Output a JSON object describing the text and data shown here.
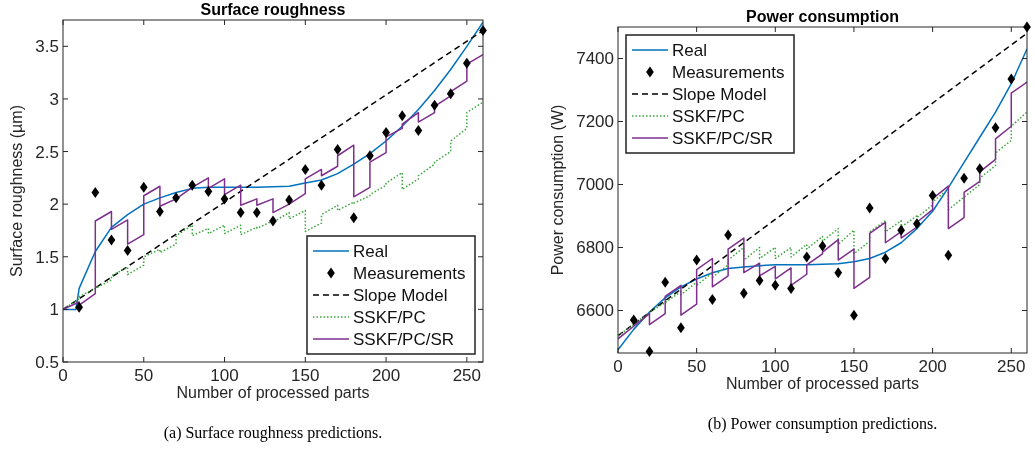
{
  "chart_data": [
    {
      "type": "line",
      "title": "Surface roughness",
      "xlabel": "Number of processed parts",
      "ylabel": "Surface roughness (µm)",
      "xlim": [
        0,
        260
      ],
      "ylim": [
        0.5,
        3.75
      ],
      "xticks": [
        0,
        50,
        100,
        150,
        200,
        250
      ],
      "yticks": [
        0.5,
        1,
        1.5,
        2,
        2.5,
        3,
        3.5
      ],
      "grid": false,
      "legend": "bottom right",
      "annotations": [
        "(a) Surface roughness predictions."
      ],
      "series": [
        {
          "name": "Real",
          "color": "#0072bd",
          "line_style": "solid",
          "x": [
            0,
            8,
            10,
            20,
            30,
            40,
            50,
            60,
            70,
            80,
            90,
            100,
            120,
            140,
            150,
            160,
            170,
            180,
            190,
            200,
            210,
            220,
            230,
            240,
            250,
            260
          ],
          "values": [
            1,
            1,
            1.2,
            1.55,
            1.78,
            1.9,
            2.0,
            2.06,
            2.11,
            2.15,
            2.16,
            2.16,
            2.16,
            2.17,
            2.2,
            2.23,
            2.29,
            2.38,
            2.48,
            2.6,
            2.74,
            2.9,
            3.08,
            3.28,
            3.5,
            3.73
          ]
        },
        {
          "name": "Measurements",
          "type": "scatter",
          "color": "#000000",
          "marker": "diamond",
          "x": [
            10,
            20,
            30,
            40,
            50,
            60,
            70,
            80,
            90,
            100,
            110,
            120,
            130,
            140,
            150,
            160,
            170,
            180,
            190,
            200,
            210,
            220,
            230,
            240,
            250,
            260
          ],
          "values": [
            1.02,
            2.11,
            1.66,
            1.56,
            2.16,
            1.93,
            2.06,
            2.18,
            2.12,
            2.05,
            1.92,
            1.92,
            1.84,
            2.04,
            2.33,
            2.18,
            2.52,
            1.87,
            2.46,
            2.68,
            2.84,
            2.7,
            2.94,
            3.05,
            3.34,
            3.65
          ]
        },
        {
          "name": "Slope Model",
          "type": "line",
          "color": "#000000",
          "line_style": "dashed",
          "x": [
            0,
            260
          ],
          "values": [
            1,
            3.65
          ]
        },
        {
          "name": "SSKF/PC",
          "type": "line",
          "color": "#3aa53a",
          "line_style": "dotted",
          "x": [
            0,
            10,
            10,
            20,
            20,
            30,
            30,
            40,
            40,
            50,
            50,
            60,
            60,
            70,
            70,
            80,
            80,
            90,
            90,
            100,
            100,
            110,
            110,
            120,
            120,
            130,
            130,
            140,
            140,
            150,
            150,
            160,
            160,
            170,
            170,
            180,
            180,
            190,
            190,
            200,
            200,
            210,
            210,
            220,
            220,
            230,
            230,
            240,
            240,
            250,
            250,
            260
          ],
          "values": [
            1,
            1.1,
            1.12,
            1.2,
            1.2,
            1.28,
            1.32,
            1.4,
            1.33,
            1.42,
            1.5,
            1.57,
            1.54,
            1.62,
            1.7,
            1.8,
            1.7,
            1.77,
            1.72,
            1.8,
            1.72,
            1.8,
            1.71,
            1.78,
            1.77,
            1.84,
            1.83,
            1.92,
            1.86,
            1.94,
            1.74,
            1.82,
            1.9,
            1.99,
            1.94,
            2.02,
            2.01,
            2.08,
            2.09,
            2.18,
            2.2,
            2.3,
            2.14,
            2.24,
            2.27,
            2.38,
            2.4,
            2.5,
            2.6,
            2.72,
            2.87,
            2.97
          ]
        },
        {
          "name": "SSKF/PC/SR",
          "type": "line",
          "color": "#7e2f8e",
          "line_style": "solid",
          "x": [
            0,
            10,
            10,
            20,
            20,
            30,
            30,
            40,
            40,
            50,
            50,
            60,
            60,
            70,
            70,
            80,
            80,
            90,
            90,
            100,
            100,
            110,
            110,
            120,
            120,
            130,
            130,
            140,
            140,
            150,
            150,
            160,
            160,
            170,
            170,
            180,
            180,
            190,
            190,
            200,
            200,
            210,
            210,
            220,
            220,
            230,
            230,
            240,
            240,
            250,
            250,
            260
          ],
          "values": [
            1,
            1.07,
            1.04,
            1.15,
            1.84,
            1.93,
            1.76,
            1.85,
            1.62,
            1.71,
            2.08,
            2.17,
            1.98,
            2.05,
            2.05,
            2.16,
            2.16,
            2.25,
            2.15,
            2.24,
            2.09,
            2.18,
            1.99,
            2.05,
            1.99,
            2.05,
            1.92,
            2.0,
            2.0,
            2.1,
            2.24,
            2.33,
            2.27,
            2.36,
            2.46,
            2.56,
            2.07,
            2.16,
            2.4,
            2.49,
            2.64,
            2.72,
            2.76,
            2.87,
            2.78,
            2.87,
            2.93,
            3.03,
            3.07,
            3.17,
            3.33,
            3.42
          ]
        }
      ]
    },
    {
      "type": "line",
      "title": "Power consumption",
      "xlabel": "Number of processed parts",
      "ylabel": "Power consumption (W)",
      "xlim": [
        0,
        260
      ],
      "ylim": [
        6465,
        7500
      ],
      "xticks": [
        0,
        50,
        100,
        150,
        200,
        250
      ],
      "yticks": [
        6600,
        6800,
        7000,
        7200,
        7400
      ],
      "grid": false,
      "legend": "top left",
      "annotations": [
        "(b) Power consumption predictions."
      ],
      "series": [
        {
          "name": "Real",
          "color": "#0072bd",
          "line_style": "solid",
          "x": [
            0,
            10,
            20,
            30,
            40,
            50,
            60,
            70,
            80,
            90,
            100,
            120,
            140,
            150,
            160,
            170,
            180,
            190,
            200,
            210,
            220,
            230,
            240,
            250,
            260
          ],
          "values": [
            6475,
            6540,
            6595,
            6640,
            6675,
            6700,
            6720,
            6733,
            6738,
            6742,
            6745,
            6745,
            6748,
            6755,
            6765,
            6785,
            6815,
            6860,
            6915,
            6990,
            7070,
            7150,
            7230,
            7320,
            7430
          ]
        },
        {
          "name": "Measurements",
          "type": "scatter",
          "color": "#000000",
          "marker": "diamond",
          "x": [
            10,
            20,
            30,
            40,
            50,
            60,
            70,
            80,
            90,
            100,
            110,
            120,
            130,
            140,
            150,
            160,
            170,
            180,
            190,
            200,
            210,
            220,
            230,
            240,
            250,
            260
          ],
          "values": [
            6570,
            6470,
            6690,
            6545,
            6760,
            6635,
            6840,
            6655,
            6695,
            6680,
            6670,
            6770,
            6805,
            6720,
            6585,
            6925,
            6765,
            6855,
            6875,
            6965,
            6775,
            7020,
            7050,
            7180,
            7335,
            7500
          ]
        },
        {
          "name": "Slope Model",
          "type": "line",
          "color": "#000000",
          "line_style": "dashed",
          "x": [
            0,
            260
          ],
          "values": [
            6520,
            7480
          ]
        },
        {
          "name": "SSKF/PC",
          "type": "line",
          "color": "#3aa53a",
          "line_style": "dotted",
          "x": [
            0,
            10,
            10,
            20,
            20,
            30,
            30,
            40,
            40,
            50,
            50,
            60,
            60,
            70,
            70,
            80,
            80,
            90,
            90,
            100,
            100,
            110,
            110,
            120,
            120,
            130,
            130,
            140,
            140,
            150,
            150,
            160,
            160,
            170,
            170,
            180,
            180,
            190,
            190,
            200,
            200,
            210,
            210,
            220,
            220,
            230,
            230,
            240,
            240,
            250,
            250,
            260
          ],
          "values": [
            6520,
            6555,
            6560,
            6590,
            6595,
            6625,
            6625,
            6660,
            6650,
            6690,
            6680,
            6720,
            6705,
            6745,
            6760,
            6800,
            6760,
            6800,
            6765,
            6800,
            6765,
            6800,
            6770,
            6810,
            6795,
            6835,
            6820,
            6860,
            6810,
            6855,
            6780,
            6820,
            6850,
            6885,
            6850,
            6885,
            6865,
            6900,
            6895,
            6935,
            6945,
            6985,
            6920,
            6960,
            6960,
            7000,
            7020,
            7060,
            7100,
            7140,
            7185,
            7230
          ]
        },
        {
          "name": "SSKF/PC/SR",
          "type": "line",
          "color": "#7e2f8e",
          "line_style": "solid",
          "x": [
            0,
            10,
            10,
            20,
            20,
            30,
            30,
            40,
            40,
            50,
            50,
            60,
            60,
            70,
            70,
            80,
            80,
            90,
            90,
            100,
            100,
            110,
            110,
            120,
            120,
            130,
            130,
            140,
            140,
            150,
            150,
            160,
            160,
            170,
            170,
            180,
            180,
            190,
            190,
            200,
            200,
            210,
            210,
            220,
            220,
            230,
            230,
            240,
            240,
            250,
            250,
            260
          ],
          "values": [
            6510,
            6550,
            6550,
            6590,
            6555,
            6590,
            6645,
            6680,
            6585,
            6620,
            6730,
            6765,
            6675,
            6710,
            6795,
            6830,
            6720,
            6750,
            6710,
            6740,
            6700,
            6735,
            6680,
            6715,
            6745,
            6780,
            6785,
            6825,
            6760,
            6795,
            6670,
            6705,
            6845,
            6880,
            6815,
            6850,
            6830,
            6865,
            6880,
            6920,
            6955,
            6995,
            6860,
            6895,
            6975,
            7010,
            7040,
            7080,
            7145,
            7185,
            7290,
            7325
          ]
        }
      ]
    }
  ]
}
